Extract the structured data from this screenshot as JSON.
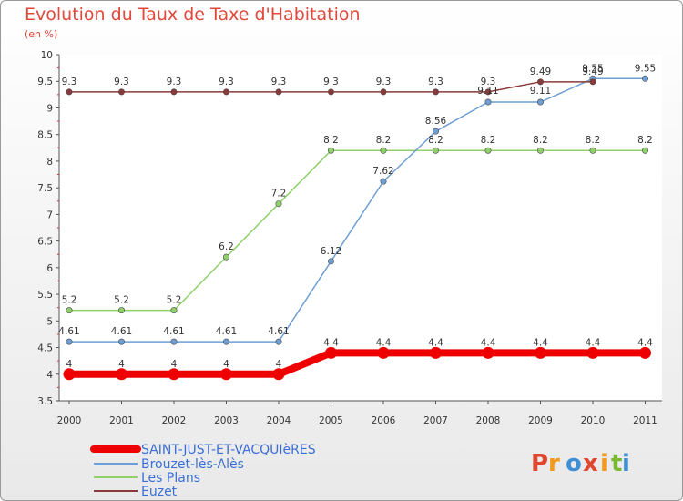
{
  "title": "Evolution du Taux de Taxe d'Habitation",
  "subtitle": "(en %)",
  "brand": "Proxiti",
  "brand_colors": [
    "#e1462f",
    "#f39a1c",
    "#3f8fd4",
    "#e1462f",
    "#f39a1c",
    "#79b830",
    "#3f8fd4"
  ],
  "chart_data": {
    "type": "line",
    "categories": [
      "2000",
      "2001",
      "2002",
      "2003",
      "2004",
      "2005",
      "2006",
      "2007",
      "2008",
      "2009",
      "2010",
      "2011"
    ],
    "ylim": [
      3.5,
      10
    ],
    "yticks": [
      "3.5",
      "4",
      "4.5",
      "5",
      "5.5",
      "6",
      "6.5",
      "7",
      "7.5",
      "8",
      "8.5",
      "9",
      "9.5",
      "10"
    ],
    "grid": false,
    "legend_position": "bottom-left",
    "series": [
      {
        "name": "SAINT-JUST-ET-VACQUIèRES",
        "color": "#ee0000",
        "values": [
          4,
          4,
          4,
          4,
          4,
          4.4,
          4.4,
          4.4,
          4.4,
          4.4,
          4.4,
          4.4
        ],
        "labels": [
          "4",
          "4",
          "4",
          "4",
          "4",
          "4.4",
          "4.4",
          "4.4",
          "4.4",
          "4.4",
          "4.4",
          "4.4"
        ]
      },
      {
        "name": "Brouzet-lès-Alès",
        "color": "#6d9fd4",
        "values": [
          4.61,
          4.61,
          4.61,
          4.61,
          4.61,
          6.12,
          7.62,
          8.56,
          9.11,
          9.11,
          9.55,
          9.55
        ],
        "labels": [
          "4.61",
          "4.61",
          "4.61",
          "4.61",
          "4.61",
          "6.12",
          "7.62",
          "8.56",
          "9.11",
          "9.11",
          "9.55",
          "9.55"
        ]
      },
      {
        "name": "Les Plans",
        "color": "#8fd06b",
        "values": [
          5.2,
          5.2,
          5.2,
          6.2,
          7.2,
          8.2,
          8.2,
          8.2,
          8.2,
          8.2,
          8.2,
          8.2
        ],
        "labels": [
          "5.2",
          "5.2",
          "5.2",
          "6.2",
          "7.2",
          "8.2",
          "8.2",
          "8.2",
          "8.2",
          "8.2",
          "8.2",
          "8.2"
        ]
      },
      {
        "name": "Euzet",
        "color": "#8a3a3a",
        "values": [
          9.3,
          9.3,
          9.3,
          9.3,
          9.3,
          9.3,
          9.3,
          9.3,
          9.3,
          9.49,
          9.49,
          null
        ],
        "labels": [
          "9.3",
          "9.3",
          "9.3",
          "9.3",
          "9.3",
          "9.3",
          "9.3",
          "9.3",
          "9.3",
          "9.49",
          "9.49",
          ""
        ]
      }
    ]
  }
}
